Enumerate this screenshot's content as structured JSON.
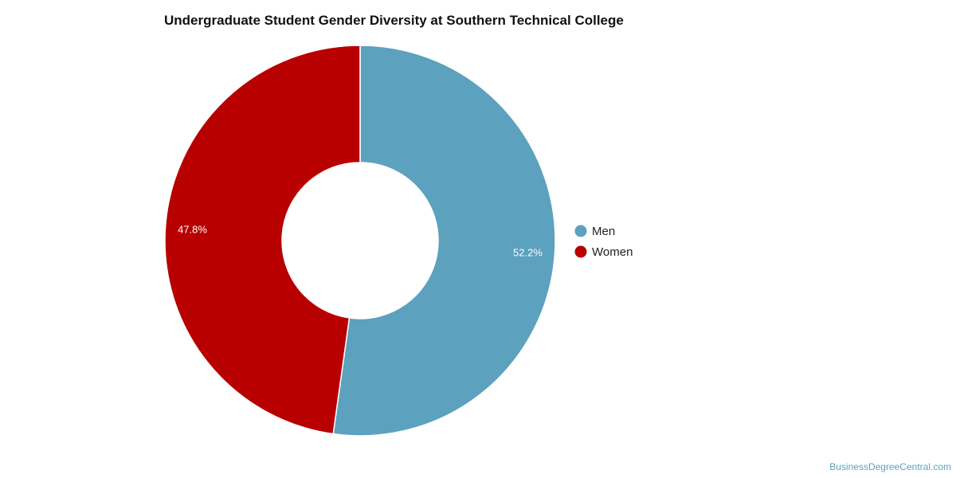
{
  "chart_data": {
    "type": "pie",
    "style": "donut",
    "title": "Undergraduate Student Gender Diversity at Southern Technical College",
    "categories": [
      "Men",
      "Women"
    ],
    "values": [
      52.2,
      47.8
    ],
    "data_labels": [
      "52.2%",
      "47.8%"
    ],
    "colors": [
      "#5ca1be",
      "#b90000"
    ],
    "legend": {
      "placement": "right",
      "entries": [
        "Men",
        "Women"
      ]
    }
  },
  "footer": {
    "source": "BusinessDegreeCentral.com"
  }
}
